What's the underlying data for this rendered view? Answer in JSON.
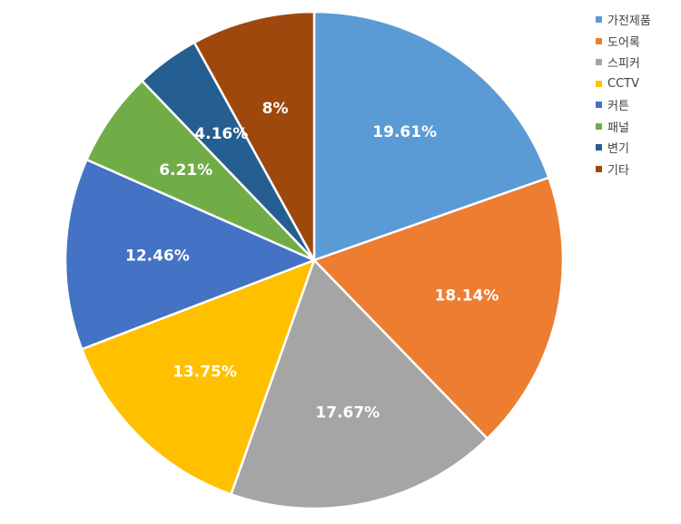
{
  "chart_data": {
    "type": "pie",
    "title": "",
    "start": "top",
    "direction": "clockwise",
    "legend_position": "right",
    "slices": [
      {
        "name": "가전제품",
        "value": 19.61,
        "label": "19.61%",
        "color": "#5B9BD5"
      },
      {
        "name": "도어록",
        "value": 18.14,
        "label": "18.14%",
        "color": "#ED7D31"
      },
      {
        "name": "스피커",
        "value": 17.67,
        "label": "17.67%",
        "color": "#A5A5A5"
      },
      {
        "name": "CCTV",
        "value": 13.75,
        "label": "13.75%",
        "color": "#FFC000"
      },
      {
        "name": "커튼",
        "value": 12.46,
        "label": "12.46%",
        "color": "#4472C4"
      },
      {
        "name": "패널",
        "value": 6.21,
        "label": "6.21%",
        "color": "#70AD47"
      },
      {
        "name": "변기",
        "value": 4.16,
        "label": "4.16%",
        "color": "#255E91"
      },
      {
        "name": "기타",
        "value": 8,
        "label": "8%",
        "color": "#9E480E"
      }
    ]
  }
}
